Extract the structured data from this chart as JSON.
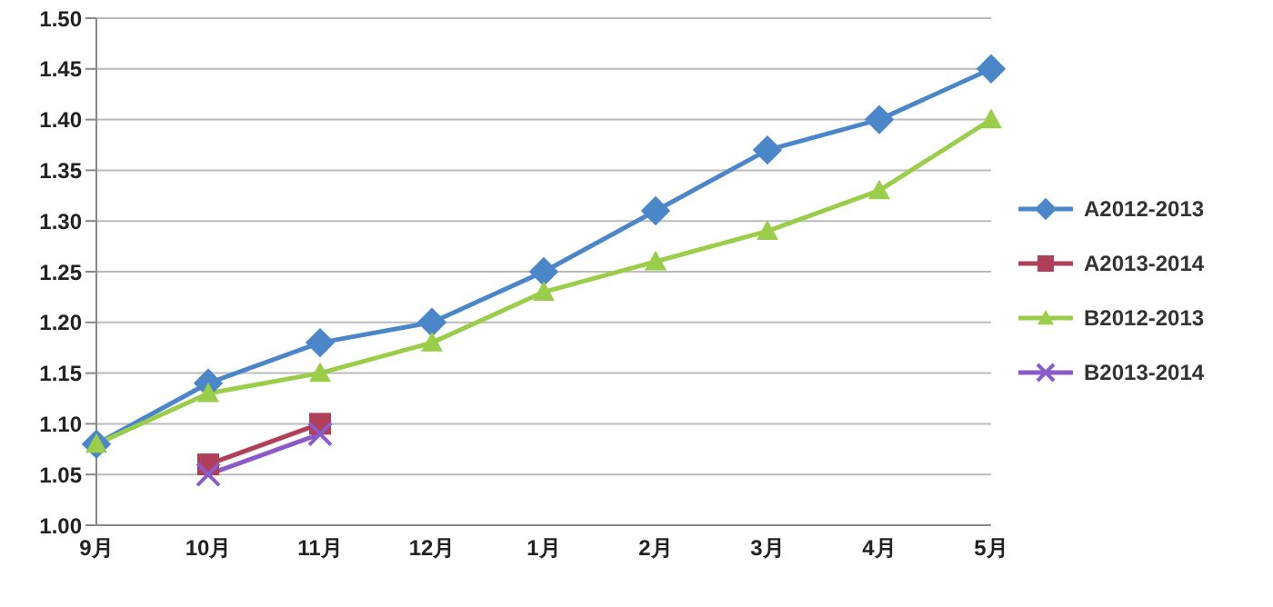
{
  "chart_data": {
    "type": "line",
    "categories": [
      "9月",
      "10月",
      "11月",
      "12月",
      "1月",
      "2月",
      "3月",
      "4月",
      "5月"
    ],
    "series": [
      {
        "name": "A2012-2013",
        "color": "#4a86c8",
        "marker": "diamond",
        "values": [
          1.08,
          1.14,
          1.18,
          1.2,
          1.25,
          1.31,
          1.37,
          1.4,
          1.45
        ]
      },
      {
        "name": "A2013-2014",
        "color": "#b0405a",
        "marker": "square",
        "values": [
          null,
          1.06,
          1.1,
          null,
          null,
          null,
          null,
          null,
          null
        ]
      },
      {
        "name": "B2012-2013",
        "color": "#9acd4a",
        "marker": "triangle",
        "values": [
          1.08,
          1.13,
          1.15,
          1.18,
          1.23,
          1.26,
          1.29,
          1.33,
          1.4
        ]
      },
      {
        "name": "B2013-2014",
        "color": "#8a5ac8",
        "marker": "cross",
        "values": [
          null,
          1.05,
          1.09,
          null,
          null,
          null,
          null,
          null,
          null
        ]
      }
    ],
    "ylim": [
      1.0,
      1.5
    ],
    "yticks": [
      {
        "value": 1.0,
        "label": "1.00"
      },
      {
        "value": 1.05,
        "label": "1.05"
      },
      {
        "value": 1.1,
        "label": "1.10"
      },
      {
        "value": 1.15,
        "label": "1.15"
      },
      {
        "value": 1.2,
        "label": "1.20"
      },
      {
        "value": 1.25,
        "label": "1.25"
      },
      {
        "value": 1.3,
        "label": "1.30"
      },
      {
        "value": 1.35,
        "label": "1.35"
      },
      {
        "value": 1.4,
        "label": "1.40"
      },
      {
        "value": 1.45,
        "label": "1.45"
      },
      {
        "value": 1.5,
        "label": "1.50"
      }
    ],
    "grid": "y",
    "legend": "right",
    "line_style": "solid"
  }
}
